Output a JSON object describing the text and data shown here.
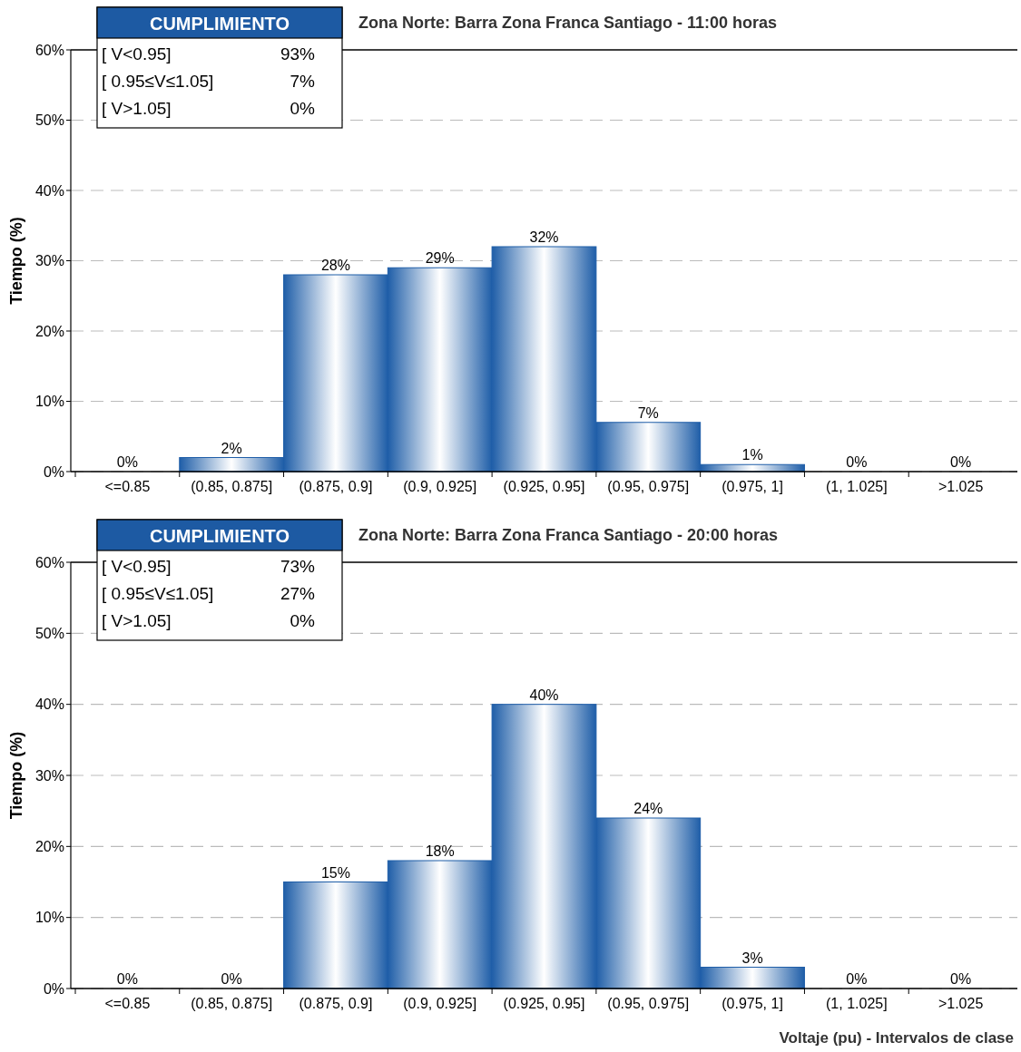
{
  "chart_data": [
    {
      "type": "bar",
      "title": "Zona Norte: Barra Zona Franca Santiago - 11:00 horas",
      "ylabel": "Tiempo (%)",
      "categories": [
        "<=0.85",
        "(0.85, 0.875]",
        "(0.875, 0.9]",
        "(0.9, 0.925]",
        "(0.925, 0.95]",
        "(0.95, 0.975]",
        "(0.975, 1]",
        "(1, 1.025]",
        ">1.025"
      ],
      "values": [
        0,
        2,
        28,
        29,
        32,
        7,
        1,
        0,
        0
      ],
      "value_labels": [
        "0%",
        "2%",
        "28%",
        "29%",
        "32%",
        "7%",
        "1%",
        "0%",
        "0%"
      ],
      "color": "#1f5ea8",
      "ylim": [
        0,
        60
      ],
      "yticks": [
        {
          "value": 0,
          "label": "0%"
        },
        {
          "value": 10,
          "label": "10%"
        },
        {
          "value": 20,
          "label": "20%"
        },
        {
          "value": 30,
          "label": "30%"
        },
        {
          "value": 40,
          "label": "40%"
        },
        {
          "value": 50,
          "label": "50%"
        },
        {
          "value": 60,
          "label": "60%"
        }
      ],
      "grid": "y",
      "annotations": [
        "CUMPLIMIENTO",
        "[ V<0.95]",
        "93%",
        "[ 0.95≤V≤1.05]",
        "7%",
        "[ V>1.05]",
        "0%"
      ]
    },
    {
      "type": "bar",
      "title": "Zona Norte: Barra Zona Franca Santiago - 20:00 horas",
      "ylabel": "Tiempo (%)",
      "xlabel": "Voltaje (pu) - Intervalos de clase",
      "categories": [
        "<=0.85",
        "(0.85, 0.875]",
        "(0.875, 0.9]",
        "(0.9, 0.925]",
        "(0.925, 0.95]",
        "(0.95, 0.975]",
        "(0.975, 1]",
        "(1, 1.025]",
        ">1.025"
      ],
      "values": [
        0,
        0,
        15,
        18,
        40,
        24,
        3,
        0,
        0
      ],
      "value_labels": [
        "0%",
        "0%",
        "15%",
        "18%",
        "40%",
        "24%",
        "3%",
        "0%",
        "0%"
      ],
      "color": "#1f5ea8",
      "ylim": [
        0,
        60
      ],
      "yticks": [
        {
          "value": 0,
          "label": "0%"
        },
        {
          "value": 10,
          "label": "10%"
        },
        {
          "value": 20,
          "label": "20%"
        },
        {
          "value": 30,
          "label": "30%"
        },
        {
          "value": 40,
          "label": "40%"
        },
        {
          "value": 50,
          "label": "50%"
        },
        {
          "value": 60,
          "label": "60%"
        }
      ],
      "grid": "y",
      "annotations": [
        "CUMPLIMIENTO",
        "[ V<0.95]",
        "73%",
        "[ 0.95≤V≤1.05]",
        "27%",
        "[ V>1.05]",
        "0%"
      ]
    }
  ]
}
